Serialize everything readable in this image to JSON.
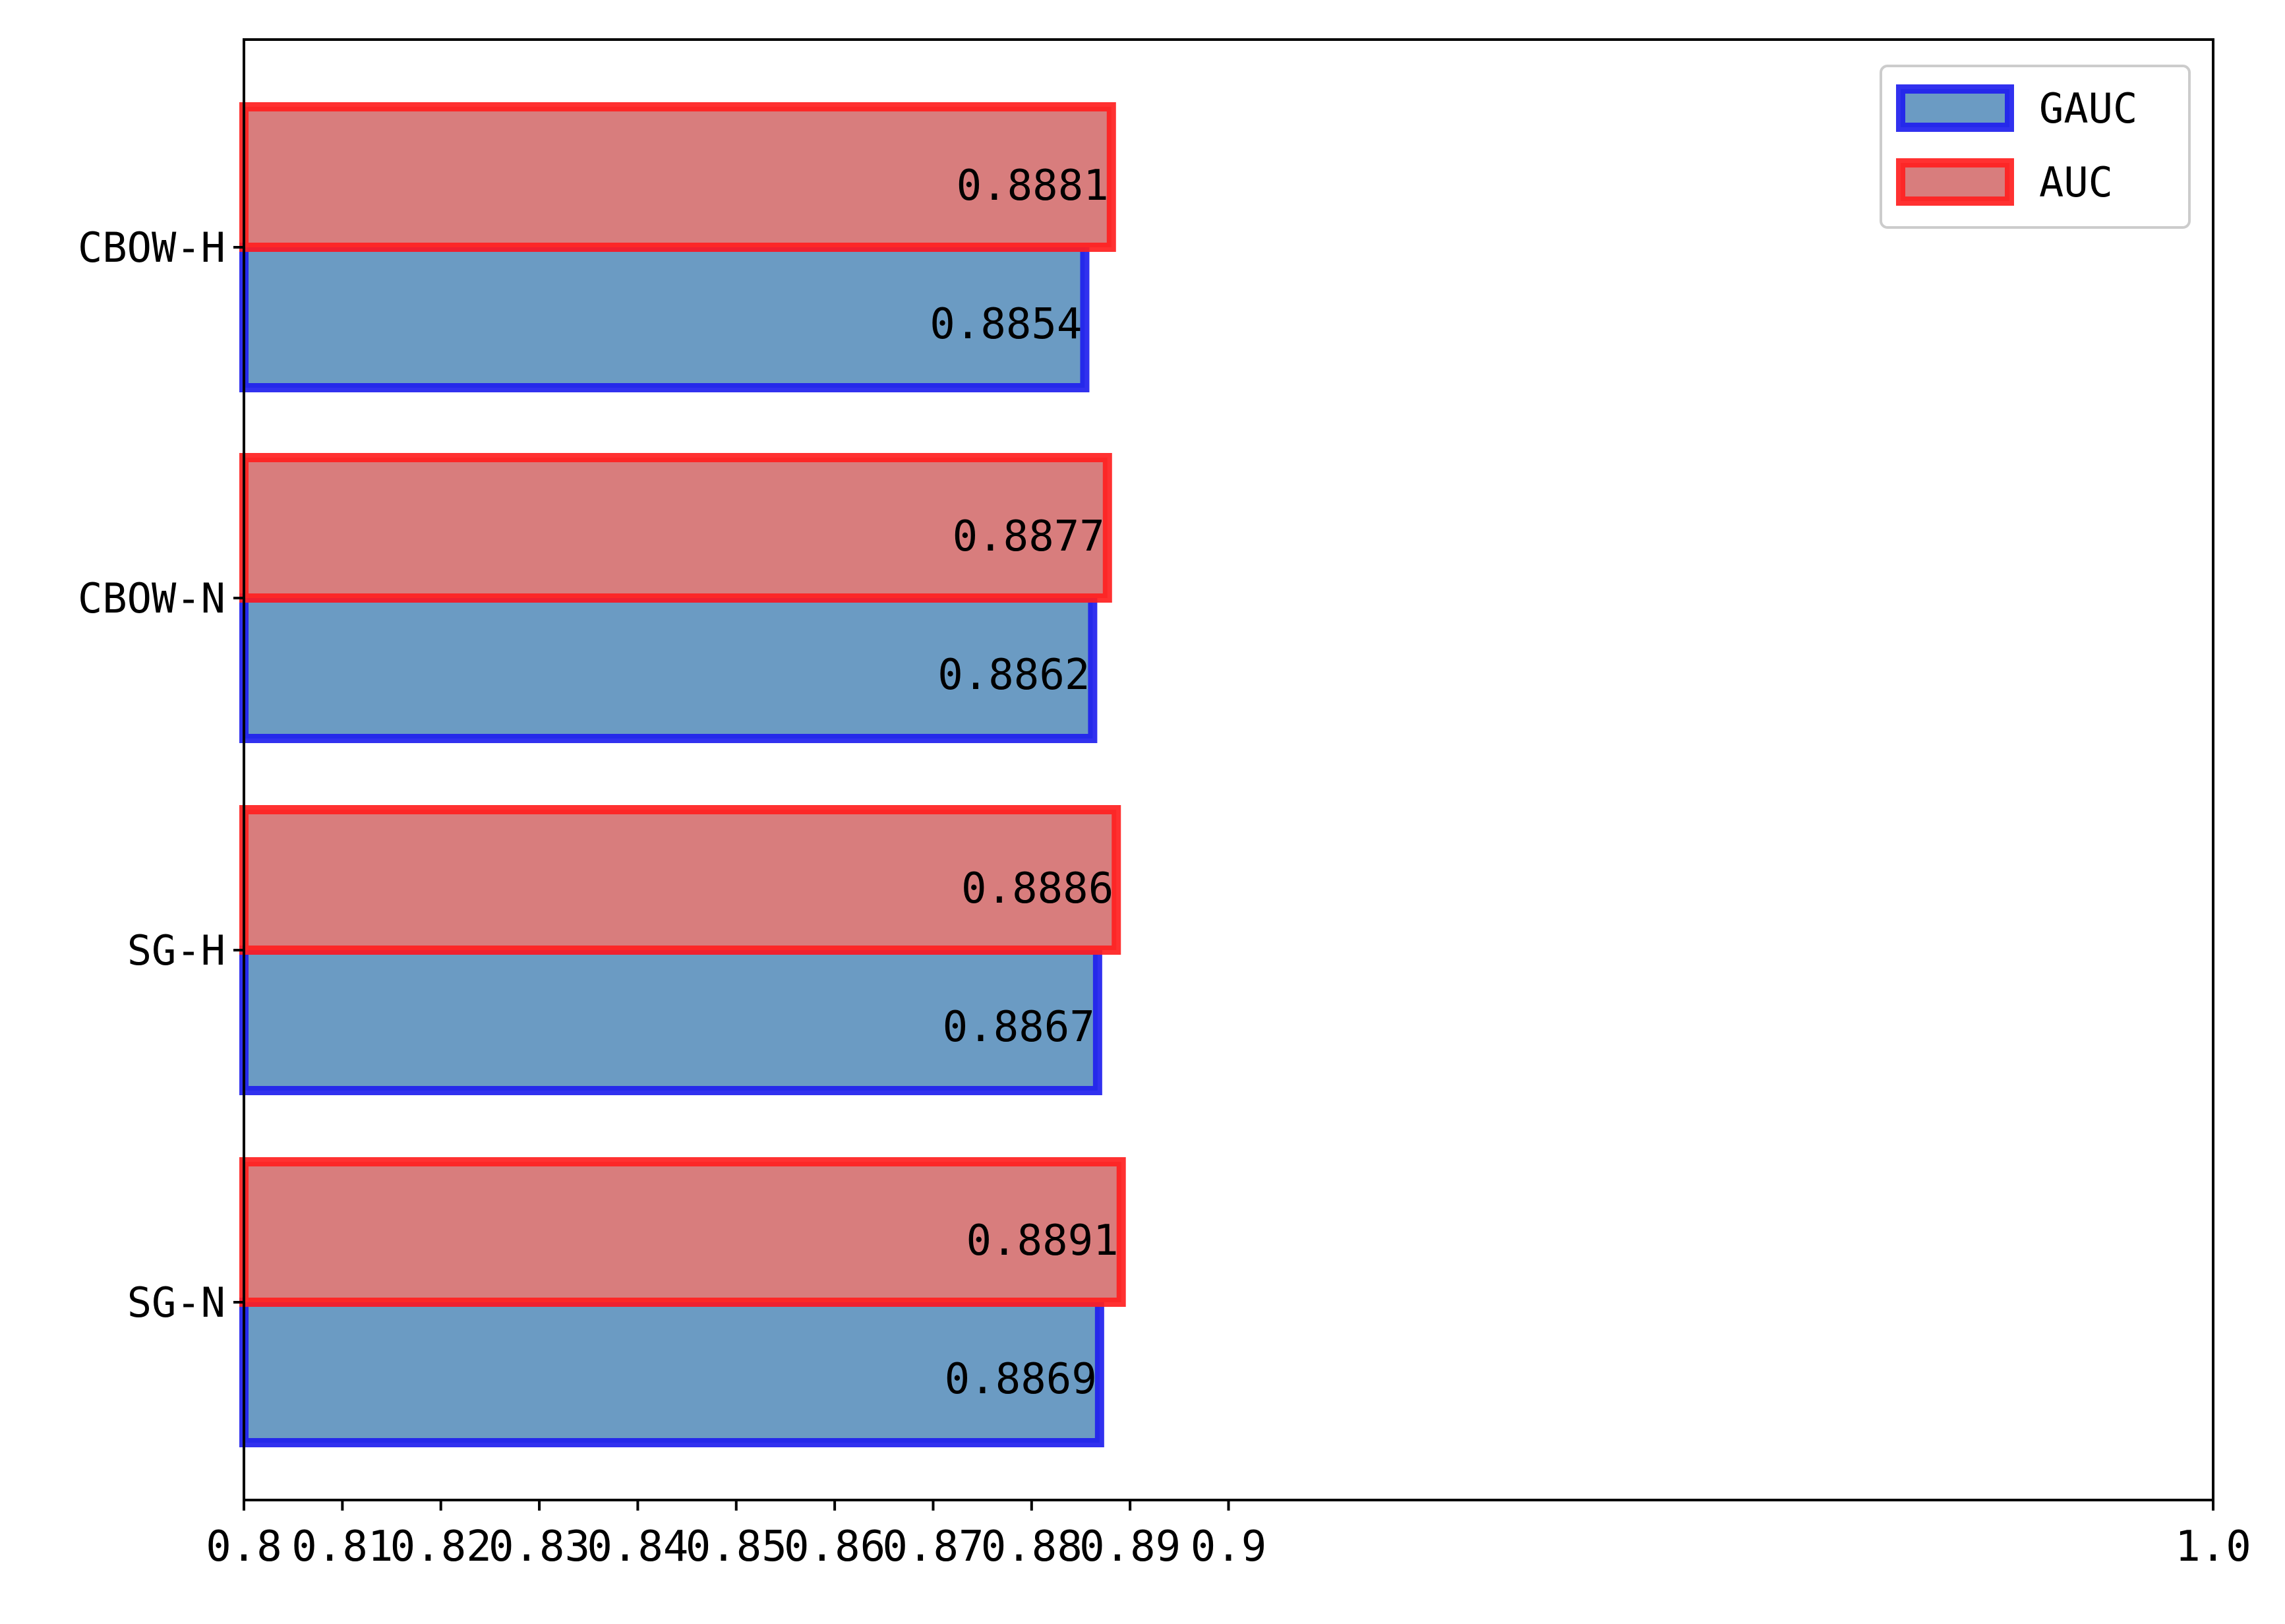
{
  "chart_data": {
    "type": "bar",
    "orientation": "horizontal",
    "categories": [
      "CBOW-H",
      "CBOW-N",
      "SG-H",
      "SG-N"
    ],
    "series": [
      {
        "name": "GAUC",
        "values": [
          0.8854,
          0.8862,
          0.8867,
          0.8869
        ],
        "labels": [
          "0.8854",
          "0.8862",
          "0.8867",
          "0.8869"
        ],
        "fill": "#6b9bc3",
        "edge": "#2020ee"
      },
      {
        "name": "AUC",
        "values": [
          0.8881,
          0.8877,
          0.8886,
          0.8891
        ],
        "labels": [
          "0.8881",
          "0.8877",
          "0.8886",
          "0.8891"
        ],
        "fill": "#d87d7d",
        "edge": "#ff2020"
      }
    ],
    "xlim": [
      0.8,
      1.0
    ],
    "xticks": [
      0.8,
      0.81,
      0.82,
      0.83,
      0.84,
      0.85,
      0.86,
      0.87,
      0.88,
      0.89,
      0.9,
      1.0
    ],
    "xtick_labels": [
      "0.8",
      "0.81",
      "0.82",
      "0.83",
      "0.84",
      "0.85",
      "0.86",
      "0.87",
      "0.88",
      "0.89",
      "0.9",
      "1.0"
    ],
    "grid": false,
    "legend_position": "top-right"
  }
}
